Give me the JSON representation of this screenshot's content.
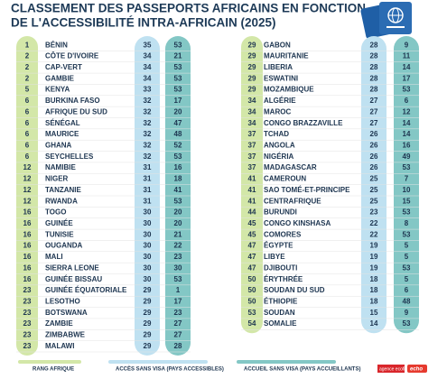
{
  "header": {
    "title": [
      "CLASSEMENT DES PASSEPORTS AFRICAINS EN FONCTION",
      "DE L'ACCESSIBILITÉ INTRA-AFRICAIN (2025)"
    ]
  },
  "table": {
    "rows": [
      [
        1,
        "BÉNIN",
        35,
        53
      ],
      [
        2,
        "CÔTE D'IVOIRE",
        34,
        21
      ],
      [
        2,
        "CAP-VERT",
        34,
        53
      ],
      [
        2,
        "GAMBIE",
        34,
        53
      ],
      [
        5,
        "KENYA",
        33,
        53
      ],
      [
        6,
        "BURKINA FASO",
        32,
        17
      ],
      [
        6,
        "AFRIQUE DU SUD",
        32,
        20
      ],
      [
        6,
        "SÉNÉGAL",
        32,
        47
      ],
      [
        6,
        "MAURICE",
        32,
        48
      ],
      [
        6,
        "GHANA",
        32,
        52
      ],
      [
        6,
        "SEYCHELLES",
        32,
        53
      ],
      [
        12,
        "NAMIBIE",
        31,
        16
      ],
      [
        12,
        "NIGER",
        31,
        18
      ],
      [
        12,
        "TANZANIE",
        31,
        41
      ],
      [
        12,
        "RWANDA",
        31,
        53
      ],
      [
        16,
        "TOGO",
        30,
        20
      ],
      [
        16,
        "GUINÉE",
        30,
        20
      ],
      [
        16,
        "TUNISIE",
        30,
        21
      ],
      [
        16,
        "OUGANDA",
        30,
        22
      ],
      [
        16,
        "MALI",
        30,
        23
      ],
      [
        16,
        "SIERRA LEONE",
        30,
        30
      ],
      [
        16,
        "GUINÉE BISSAU",
        30,
        53
      ],
      [
        23,
        "GUINÉE ÉQUATORIALE",
        29,
        1
      ],
      [
        23,
        "LESOTHO",
        29,
        17
      ],
      [
        23,
        "BOTSWANA",
        29,
        23
      ],
      [
        23,
        "ZAMBIE",
        29,
        27
      ],
      [
        23,
        "ZIMBABWE",
        29,
        27
      ],
      [
        23,
        "MALAWI",
        29,
        28
      ],
      [
        29,
        "GABON",
        28,
        9
      ],
      [
        29,
        "MAURITANIE",
        28,
        11
      ],
      [
        29,
        "LIBERIA",
        28,
        14
      ],
      [
        29,
        "ESWATINI",
        28,
        17
      ],
      [
        29,
        "MOZAMBIQUE",
        28,
        53
      ],
      [
        34,
        "ALGÉRIE",
        27,
        6
      ],
      [
        34,
        "MAROC",
        27,
        12
      ],
      [
        34,
        "CONGO BRAZZAVILLE",
        27,
        14
      ],
      [
        37,
        "TCHAD",
        26,
        14
      ],
      [
        37,
        "ANGOLA",
        26,
        16
      ],
      [
        37,
        "NIGÉRIA",
        26,
        49
      ],
      [
        37,
        "MADAGASCAR",
        26,
        53
      ],
      [
        41,
        "CAMEROUN",
        25,
        7
      ],
      [
        41,
        "SAO TOMÉ-ET-PRINCIPE",
        25,
        10
      ],
      [
        41,
        "CENTRAFRIQUE",
        25,
        15
      ],
      [
        44,
        "BURUNDI",
        23,
        53
      ],
      [
        45,
        "CONGO KINSHASA",
        22,
        8
      ],
      [
        45,
        "COMORES",
        22,
        53
      ],
      [
        47,
        "ÉGYPTE",
        19,
        5
      ],
      [
        47,
        "LIBYE",
        19,
        5
      ],
      [
        47,
        "DJIBOUTI",
        19,
        53
      ],
      [
        50,
        "ÉRYTHRÉE",
        18,
        5
      ],
      [
        50,
        "SOUDAN DU SUD",
        18,
        6
      ],
      [
        50,
        "ÉTHIOPIE",
        18,
        48
      ],
      [
        53,
        "SOUDAN",
        15,
        9
      ],
      [
        54,
        "SOMALIE",
        14,
        53
      ]
    ]
  },
  "legend": [
    "RANG AFRIQUE",
    "ACCÈS SANS VISA (PAYS ACCESSIBLES)",
    "ACCUEIL SANS VISA (PAYS ACCUEILLANTS)"
  ],
  "footer": {
    "logos": [
      "agence ecofin",
      "echo"
    ]
  }
}
